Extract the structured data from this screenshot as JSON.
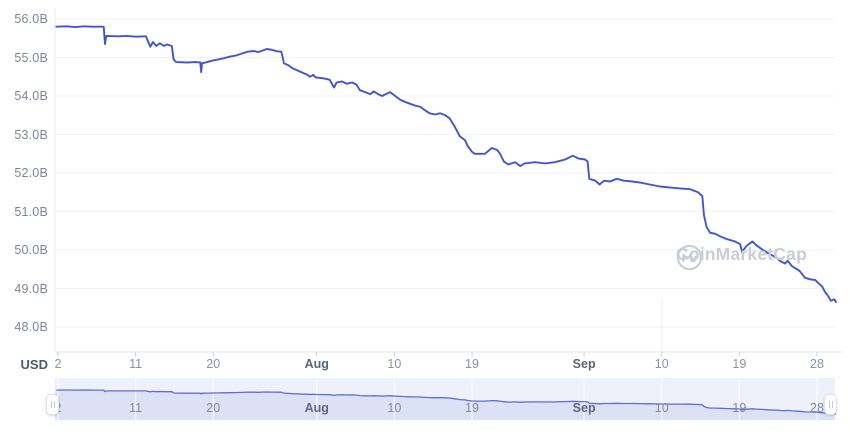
{
  "watermark": {
    "brand": "CoinMarketCap"
  },
  "y_axis": {
    "currency": "USD"
  },
  "colors": {
    "line": "#3f56d4",
    "nav_line": "#5b6fd6",
    "nav_fill": "#dce1f6",
    "nav_bg": "#eef0fa",
    "nav_grid": "rgba(255,255,255,0.65)",
    "grid": "#f2f3f7",
    "axis_line": "#e4e7ee",
    "tick": "#cbd0dd"
  },
  "chart_data": {
    "type": "line",
    "series_name": "Market Cap",
    "unit": "USD (billions)",
    "x_description": "days since Jul 2",
    "date_range_shown": "Jul 2 to Sep 30",
    "ylim": [
      47.35,
      56.3
    ],
    "grid": "horizontal",
    "y_ticks": [
      {
        "label": "56.0B",
        "value": 56.0
      },
      {
        "label": "55.0B",
        "value": 55.0
      },
      {
        "label": "54.0B",
        "value": 54.0
      },
      {
        "label": "53.0B",
        "value": 53.0
      },
      {
        "label": "52.0B",
        "value": 52.0
      },
      {
        "label": "51.0B",
        "value": 51.0
      },
      {
        "label": "50.0B",
        "value": 50.0
      },
      {
        "label": "49.0B",
        "value": 49.0
      },
      {
        "label": "48.0B",
        "value": 48.0
      }
    ],
    "x_ticks": [
      {
        "label": "2",
        "day": 0,
        "month": false
      },
      {
        "label": "11",
        "day": 9,
        "month": false
      },
      {
        "label": "20",
        "day": 18,
        "month": false
      },
      {
        "label": "Aug",
        "day": 30,
        "month": true
      },
      {
        "label": "10",
        "day": 39,
        "month": false
      },
      {
        "label": "19",
        "day": 48,
        "month": false
      },
      {
        "label": "Sep",
        "day": 61,
        "month": true
      },
      {
        "label": "10",
        "day": 70,
        "month": false
      },
      {
        "label": "19",
        "day": 79,
        "month": false
      },
      {
        "label": "28",
        "day": 88,
        "month": false
      }
    ],
    "points": [
      [
        -0.2,
        55.8
      ],
      [
        1.0,
        55.81
      ],
      [
        2.0,
        55.79
      ],
      [
        3.0,
        55.81
      ],
      [
        4.0,
        55.8
      ],
      [
        5.3,
        55.8
      ],
      [
        5.45,
        55.35
      ],
      [
        5.6,
        55.56
      ],
      [
        7.0,
        55.55
      ],
      [
        8.0,
        55.56
      ],
      [
        9.0,
        55.54
      ],
      [
        10.2,
        55.55
      ],
      [
        10.4,
        55.44
      ],
      [
        10.7,
        55.28
      ],
      [
        11.0,
        55.4
      ],
      [
        11.4,
        55.3
      ],
      [
        11.8,
        55.37
      ],
      [
        12.3,
        55.3
      ],
      [
        12.6,
        55.34
      ],
      [
        13.2,
        55.3
      ],
      [
        13.4,
        54.95
      ],
      [
        13.7,
        54.88
      ],
      [
        15.0,
        54.87
      ],
      [
        15.9,
        54.88
      ],
      [
        16.5,
        54.87
      ],
      [
        16.6,
        54.62
      ],
      [
        16.7,
        54.85
      ],
      [
        17.3,
        54.88
      ],
      [
        17.9,
        54.92
      ],
      [
        18.6,
        54.95
      ],
      [
        19.2,
        54.98
      ],
      [
        19.9,
        55.02
      ],
      [
        20.6,
        55.05
      ],
      [
        21.3,
        55.1
      ],
      [
        22.0,
        55.15
      ],
      [
        22.7,
        55.17
      ],
      [
        23.2,
        55.14
      ],
      [
        23.7,
        55.18
      ],
      [
        24.2,
        55.22
      ],
      [
        24.8,
        55.2
      ],
      [
        25.4,
        55.16
      ],
      [
        25.9,
        55.15
      ],
      [
        26.2,
        54.85
      ],
      [
        26.7,
        54.8
      ],
      [
        27.2,
        54.72
      ],
      [
        27.8,
        54.66
      ],
      [
        28.4,
        54.6
      ],
      [
        28.9,
        54.55
      ],
      [
        29.2,
        54.5
      ],
      [
        29.6,
        54.55
      ],
      [
        29.9,
        54.48
      ],
      [
        30.4,
        54.47
      ],
      [
        31.0,
        54.45
      ],
      [
        31.5,
        54.42
      ],
      [
        32.0,
        54.22
      ],
      [
        32.3,
        54.35
      ],
      [
        32.9,
        54.38
      ],
      [
        33.5,
        54.32
      ],
      [
        34.1,
        54.35
      ],
      [
        34.6,
        54.3
      ],
      [
        35.0,
        54.15
      ],
      [
        35.6,
        54.1
      ],
      [
        36.2,
        54.05
      ],
      [
        36.6,
        54.12
      ],
      [
        37.1,
        54.05
      ],
      [
        37.6,
        54.0
      ],
      [
        38.0,
        54.05
      ],
      [
        38.5,
        54.1
      ],
      [
        39.1,
        54.0
      ],
      [
        39.7,
        53.9
      ],
      [
        40.2,
        53.85
      ],
      [
        40.8,
        53.8
      ],
      [
        41.4,
        53.75
      ],
      [
        42.0,
        53.72
      ],
      [
        42.6,
        53.62
      ],
      [
        43.1,
        53.55
      ],
      [
        43.7,
        53.52
      ],
      [
        44.3,
        53.55
      ],
      [
        44.9,
        53.5
      ],
      [
        45.4,
        53.42
      ],
      [
        46.0,
        53.2
      ],
      [
        46.6,
        52.95
      ],
      [
        47.2,
        52.85
      ],
      [
        47.5,
        52.7
      ],
      [
        48.0,
        52.55
      ],
      [
        48.3,
        52.5
      ],
      [
        49.5,
        52.5
      ],
      [
        50.3,
        52.65
      ],
      [
        50.9,
        52.6
      ],
      [
        51.2,
        52.52
      ],
      [
        51.7,
        52.3
      ],
      [
        52.2,
        52.22
      ],
      [
        53.0,
        52.28
      ],
      [
        53.6,
        52.18
      ],
      [
        54.1,
        52.25
      ],
      [
        55.3,
        52.28
      ],
      [
        56.5,
        52.25
      ],
      [
        57.6,
        52.28
      ],
      [
        58.8,
        52.35
      ],
      [
        59.7,
        52.45
      ],
      [
        60.3,
        52.38
      ],
      [
        61.1,
        52.35
      ],
      [
        61.4,
        52.3
      ],
      [
        61.6,
        51.85
      ],
      [
        62.3,
        51.8
      ],
      [
        62.8,
        51.7
      ],
      [
        63.3,
        51.8
      ],
      [
        64.0,
        51.78
      ],
      [
        64.8,
        51.85
      ],
      [
        65.6,
        51.8
      ],
      [
        66.6,
        51.78
      ],
      [
        67.5,
        51.75
      ],
      [
        68.6,
        51.7
      ],
      [
        69.8,
        51.65
      ],
      [
        71.0,
        51.62
      ],
      [
        72.1,
        51.6
      ],
      [
        73.3,
        51.58
      ],
      [
        74.2,
        51.5
      ],
      [
        74.7,
        51.4
      ],
      [
        74.9,
        50.9
      ],
      [
        75.2,
        50.6
      ],
      [
        75.6,
        50.45
      ],
      [
        76.2,
        50.42
      ],
      [
        76.8,
        50.35
      ],
      [
        77.6,
        50.28
      ],
      [
        78.5,
        50.22
      ],
      [
        79.1,
        50.15
      ],
      [
        79.3,
        49.95
      ],
      [
        79.8,
        50.1
      ],
      [
        80.5,
        50.22
      ],
      [
        81.0,
        50.12
      ],
      [
        81.6,
        50.02
      ],
      [
        82.3,
        49.92
      ],
      [
        82.9,
        49.85
      ],
      [
        83.4,
        49.78
      ],
      [
        83.8,
        49.7
      ],
      [
        84.3,
        49.65
      ],
      [
        84.6,
        49.72
      ],
      [
        85.1,
        49.58
      ],
      [
        85.7,
        49.5
      ],
      [
        86.0,
        49.45
      ],
      [
        86.6,
        49.28
      ],
      [
        87.2,
        49.24
      ],
      [
        87.8,
        49.22
      ],
      [
        88.1,
        49.15
      ],
      [
        88.6,
        49.05
      ],
      [
        88.9,
        48.92
      ],
      [
        89.3,
        48.8
      ],
      [
        89.6,
        48.68
      ],
      [
        90.0,
        48.72
      ],
      [
        90.2,
        48.65
      ]
    ],
    "navigator": {
      "shows": "same series, full range",
      "range_selected": "entire range",
      "value_start": 55.82,
      "value_end": 48.65
    }
  }
}
